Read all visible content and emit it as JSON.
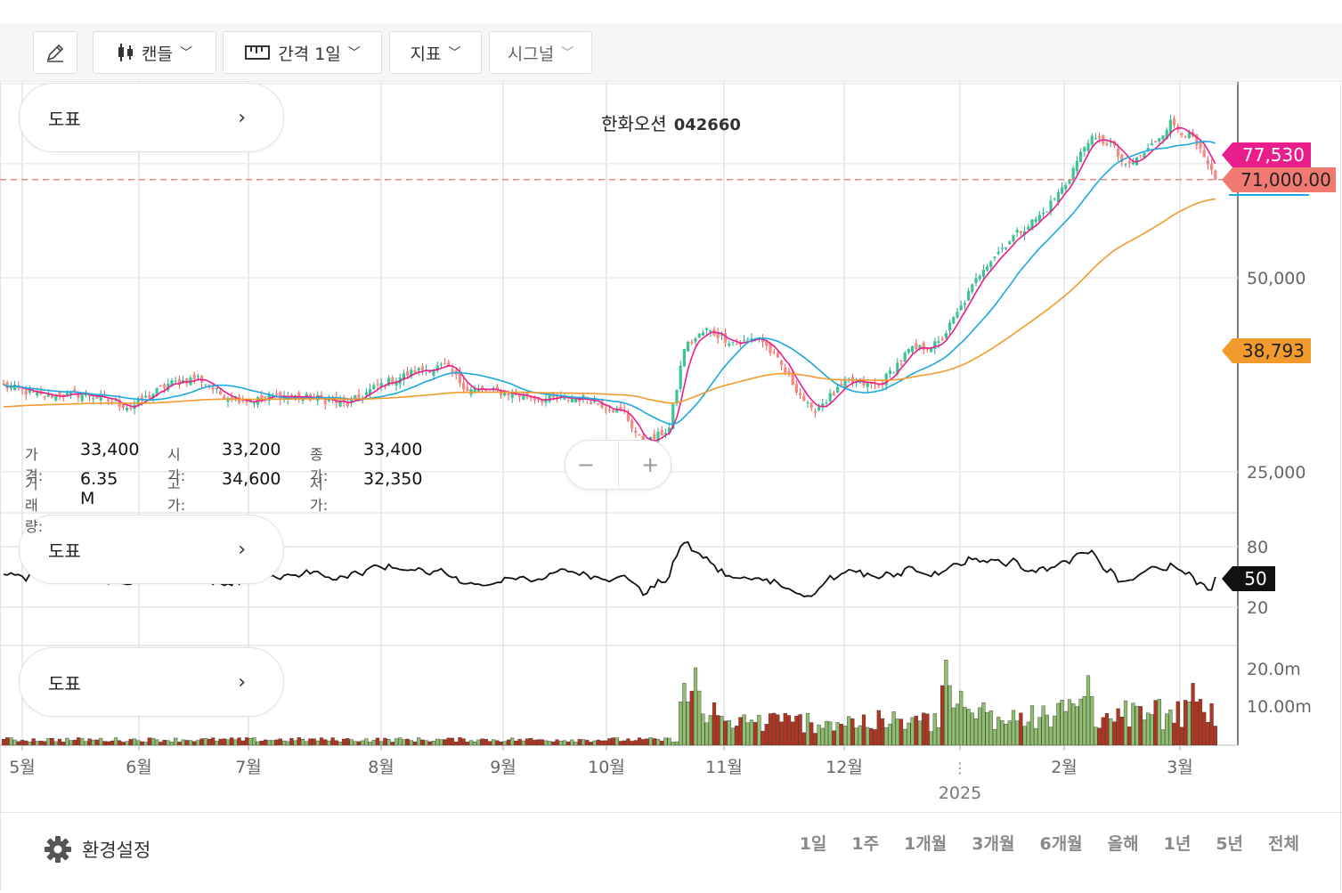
{
  "toolbar": {
    "items": [
      {
        "label": "캔들",
        "icon": "candle-icon"
      },
      {
        "label": "간격 1일",
        "icon": "ruler-icon"
      },
      {
        "label": "지표"
      },
      {
        "label": "시그널"
      }
    ]
  },
  "panels": {
    "price_label": "도표",
    "osc_label": "도표",
    "volume_label": "도표",
    "arrow": "›"
  },
  "title": {
    "name": "한화오션",
    "code": "042660"
  },
  "ohlc": {
    "price_label": "가격:",
    "price": "33,400",
    "open_label": "시가:",
    "open": "33,200",
    "close_label": "종가:",
    "close": "33,400",
    "volume_label": "거래량:",
    "volume": "6.35 M",
    "high_label": "고가:",
    "high": "34,600",
    "low_label": "저가:",
    "low": "32,350"
  },
  "zoom": {
    "minus": "−",
    "plus": "+"
  },
  "footer": {
    "settings_label": "환경설정",
    "ranges": [
      "1일",
      "1주",
      "1개월",
      "3개월",
      "6개월",
      "올해",
      "1년",
      "5년",
      "전체"
    ]
  },
  "colors": {
    "up": "#26a69a",
    "up_fill": "#3cc492",
    "down": "#ef5350",
    "down_fill": "#f28b82",
    "ma_short": "#e91e8c",
    "ma_mid": "#1aa9e0",
    "ma_long": "#f39a2c",
    "vol_up": "#8fbf6e",
    "vol_down": "#b5341f",
    "price_line": "#f08080"
  },
  "chart_data": {
    "type": "candlestick",
    "x_ticks": [
      "5월",
      "6월",
      "7월",
      "8월",
      "9월",
      "10월",
      "11월",
      "12월",
      "2025",
      "2월",
      "3월"
    ],
    "price_axis_ticks": [
      "50,000",
      "25,000"
    ],
    "price_scale": "log",
    "price_range": [
      21000,
      95000
    ],
    "badges": {
      "ma_short": "77,530",
      "last_price": "71,000.00",
      "ma_long": "38,793",
      "oscillator": "50"
    },
    "anchors": [
      {
        "t": 0,
        "c": 34000
      },
      {
        "t": 10,
        "c": 32800
      },
      {
        "t": 22,
        "c": 33000
      },
      {
        "t": 34,
        "c": 31500
      },
      {
        "t": 44,
        "c": 34200
      },
      {
        "t": 52,
        "c": 35000
      },
      {
        "t": 58,
        "c": 33000
      },
      {
        "t": 66,
        "c": 32200
      },
      {
        "t": 74,
        "c": 32800
      },
      {
        "t": 84,
        "c": 32500
      },
      {
        "t": 92,
        "c": 31800
      },
      {
        "t": 100,
        "c": 34000
      },
      {
        "t": 110,
        "c": 35800
      },
      {
        "t": 118,
        "c": 36500
      },
      {
        "t": 124,
        "c": 33600
      },
      {
        "t": 134,
        "c": 33200
      },
      {
        "t": 144,
        "c": 32400
      },
      {
        "t": 156,
        "c": 32500
      },
      {
        "t": 166,
        "c": 30800
      },
      {
        "t": 171,
        "c": 27500
      },
      {
        "t": 178,
        "c": 29200
      },
      {
        "t": 182,
        "c": 39000
      },
      {
        "t": 188,
        "c": 41500
      },
      {
        "t": 196,
        "c": 39500
      },
      {
        "t": 202,
        "c": 40500
      },
      {
        "t": 208,
        "c": 36500
      },
      {
        "t": 216,
        "c": 31000
      },
      {
        "t": 226,
        "c": 34500
      },
      {
        "t": 234,
        "c": 34000
      },
      {
        "t": 242,
        "c": 38500
      },
      {
        "t": 250,
        "c": 39500
      },
      {
        "t": 256,
        "c": 45000
      },
      {
        "t": 262,
        "c": 52000
      },
      {
        "t": 270,
        "c": 58000
      },
      {
        "t": 278,
        "c": 63000
      },
      {
        "t": 284,
        "c": 70000
      },
      {
        "t": 290,
        "c": 82000
      },
      {
        "t": 296,
        "c": 81000
      },
      {
        "t": 300,
        "c": 74000
      },
      {
        "t": 306,
        "c": 79000
      },
      {
        "t": 312,
        "c": 87000
      },
      {
        "t": 318,
        "c": 82000
      },
      {
        "t": 324,
        "c": 71000
      }
    ],
    "oscillator": {
      "range": [
        0,
        100
      ],
      "ticks": [
        80,
        20
      ]
    },
    "volume_axis_ticks": [
      "20.0m",
      "10.00m"
    ],
    "volume_events": [
      {
        "t": 182,
        "v": 16
      },
      {
        "t": 185,
        "v": 20
      },
      {
        "t": 190,
        "v": 11
      },
      {
        "t": 252,
        "v": 22
      },
      {
        "t": 256,
        "v": 14
      },
      {
        "t": 270,
        "v": 9
      },
      {
        "t": 290,
        "v": 18
      },
      {
        "t": 318,
        "v": 16
      }
    ]
  }
}
